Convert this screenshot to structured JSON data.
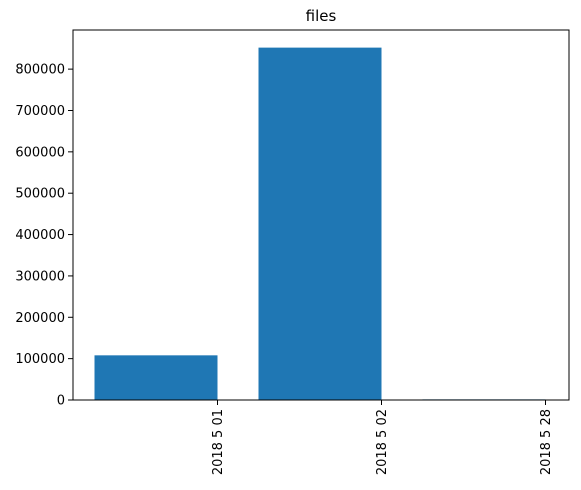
{
  "chart_data": {
    "type": "bar",
    "title": "files",
    "xlabel": "",
    "ylabel": "",
    "categories": [
      "2018 5 01",
      "2018 5 02",
      "2018 5 28"
    ],
    "values": [
      108000,
      852000,
      1500
    ],
    "ylim": [
      0,
      894600
    ],
    "yticks": [
      0,
      100000,
      200000,
      300000,
      400000,
      500000,
      600000,
      700000,
      800000
    ],
    "ytick_labels": [
      "0",
      "100000",
      "200000",
      "300000",
      "400000",
      "500000",
      "600000",
      "700000",
      "800000"
    ],
    "grid": false,
    "legend": "none",
    "bar_color": "#1f77b4"
  }
}
